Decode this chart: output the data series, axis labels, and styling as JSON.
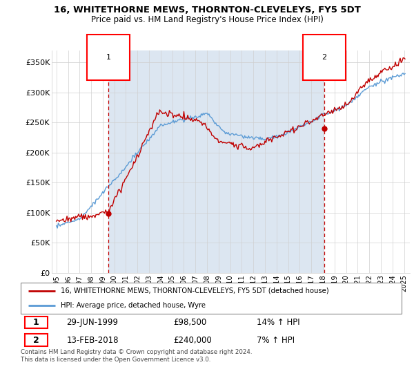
{
  "title": "16, WHITETHORNE MEWS, THORNTON-CLEVELEYS, FY5 5DT",
  "subtitle": "Price paid vs. HM Land Registry's House Price Index (HPI)",
  "ylim": [
    0,
    370000
  ],
  "yticks": [
    0,
    50000,
    100000,
    150000,
    200000,
    250000,
    300000,
    350000
  ],
  "ytick_labels": [
    "£0",
    "£50K",
    "£100K",
    "£150K",
    "£200K",
    "£250K",
    "£300K",
    "£350K"
  ],
  "hpi_color": "#5b9bd5",
  "price_color": "#c00000",
  "shade_color": "#dce6f1",
  "marker1_date": 1999.49,
  "marker1_price": 98500,
  "marker1_label": "1",
  "marker1_date_str": "29-JUN-1999",
  "marker1_price_str": "£98,500",
  "marker1_hpi_str": "14% ↑ HPI",
  "marker2_date": 2018.12,
  "marker2_price": 240000,
  "marker2_label": "2",
  "marker2_date_str": "13-FEB-2018",
  "marker2_price_str": "£240,000",
  "marker2_hpi_str": "7% ↑ HPI",
  "legend_line1": "16, WHITETHORNE MEWS, THORNTON-CLEVELEYS, FY5 5DT (detached house)",
  "legend_line2": "HPI: Average price, detached house, Wyre",
  "footer": "Contains HM Land Registry data © Crown copyright and database right 2024.\nThis data is licensed under the Open Government Licence v3.0.",
  "grid_color": "#d0d0d0",
  "xstart": 1995,
  "xend": 2025
}
